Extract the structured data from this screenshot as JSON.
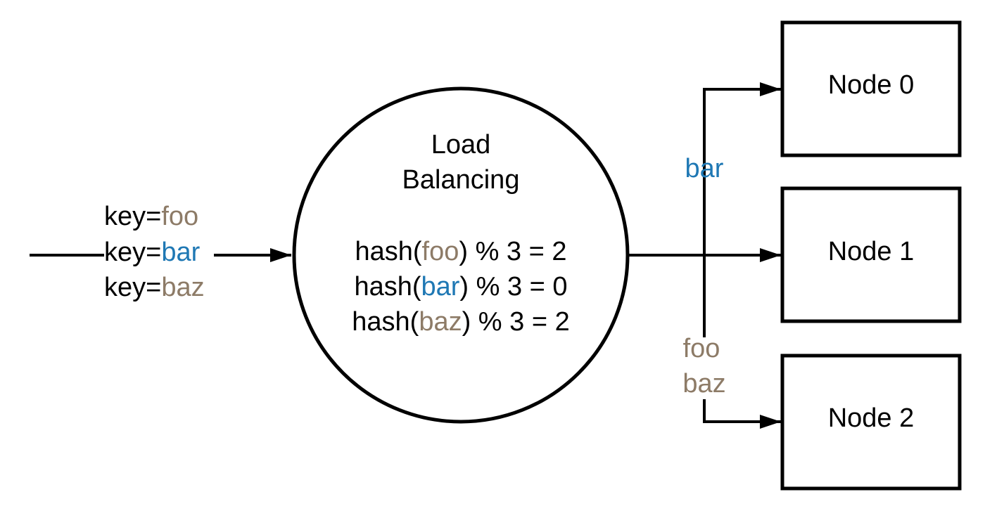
{
  "colors": {
    "line": "#000000",
    "text": "#000000",
    "foo": "#8d7b67",
    "bar": "#1f78b4",
    "baz": "#8d7b67"
  },
  "input_keys": [
    {
      "prefix": "key=",
      "key": "foo",
      "color_key": "foo"
    },
    {
      "prefix": "key=",
      "key": "bar",
      "color_key": "bar"
    },
    {
      "prefix": "key=",
      "key": "baz",
      "color_key": "baz"
    }
  ],
  "balancer": {
    "title_line1": "Load",
    "title_line2": "Balancing",
    "hash_rows": [
      {
        "func": "hash(",
        "key": "foo",
        "color_key": "foo",
        "rest": ") % 3 = 2"
      },
      {
        "func": "hash(",
        "key": "bar",
        "color_key": "bar",
        "rest": ") % 3 = 0"
      },
      {
        "func": "hash(",
        "key": "baz",
        "color_key": "baz",
        "rest": ") % 3 = 2"
      }
    ]
  },
  "routes": {
    "to_node0": [
      "bar"
    ],
    "to_node2": [
      "foo",
      "baz"
    ]
  },
  "nodes": [
    {
      "label": "Node 0"
    },
    {
      "label": "Node 1"
    },
    {
      "label": "Node 2"
    }
  ]
}
